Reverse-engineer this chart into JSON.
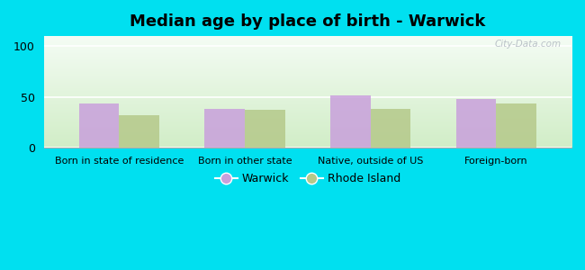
{
  "title": "Median age by place of birth - Warwick",
  "categories": [
    "Born in state of residence",
    "Born in other state",
    "Native, outside of US",
    "Foreign-born"
  ],
  "warwick_values": [
    44,
    38,
    52,
    48
  ],
  "rhode_island_values": [
    32,
    37,
    38,
    44
  ],
  "warwick_color": "#c9a0dc",
  "rhode_island_color": "#b5c98a",
  "ylim": [
    0,
    110
  ],
  "yticks": [
    0,
    50,
    100
  ],
  "background_outer": "#00e0f0",
  "bar_width": 0.32,
  "legend_warwick": "Warwick",
  "legend_rhode_island": "Rhode Island",
  "title_fontsize": 13,
  "watermark": "City-Data.com"
}
